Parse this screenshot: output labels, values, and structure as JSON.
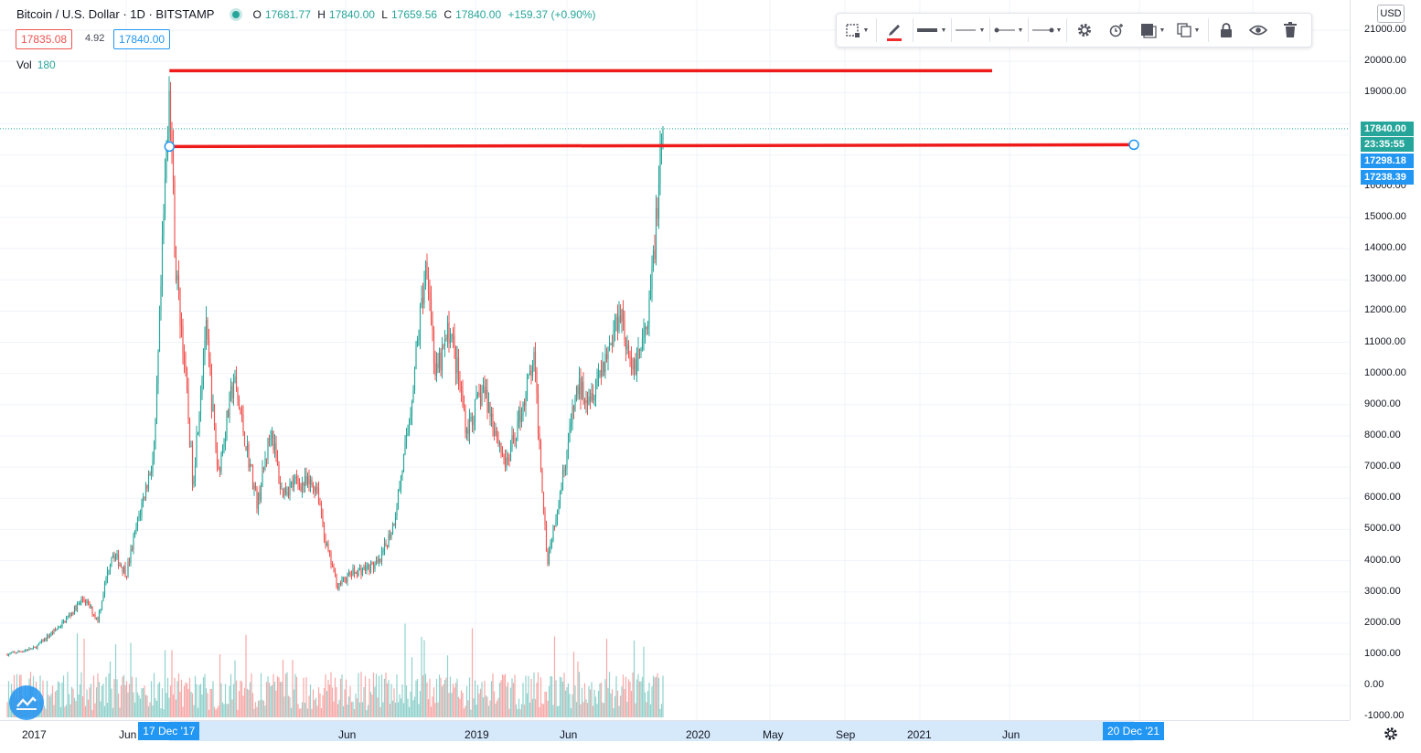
{
  "legend": {
    "title": "Bitcoin / U.S. Dollar · 1D · BITSTAMP",
    "open_label": "O",
    "open": "17681.77",
    "high_label": "H",
    "high": "17840.00",
    "low_label": "L",
    "low": "17659.56",
    "close_label": "C",
    "close": "17840.00",
    "change": "+159.37 (+0.90%)",
    "bid": "17835.08",
    "spread": "4.92",
    "ask": "17840.00",
    "vol_label": "Vol",
    "vol_value": "180"
  },
  "toolbar": {
    "items": [
      "select-area-icon",
      "pencil-icon",
      "line-width-icon",
      "line-style-icon",
      "line-left-end-icon",
      "line-right-end-icon",
      "settings-icon",
      "clone-alert-icon",
      "fill-icon",
      "copy-icon",
      "lock-icon",
      "eye-icon",
      "trash-icon"
    ],
    "accent_color": "#ef2b2b"
  },
  "price_axis": {
    "currency": "USD",
    "labels": [
      "21000.00",
      "20000.00",
      "19000.00",
      "17840.00",
      "16000.00",
      "15000.00",
      "14000.00",
      "13000.00",
      "12000.00",
      "11000.00",
      "10000.00",
      "9000.00",
      "8000.00",
      "7000.00",
      "6000.00",
      "5000.00",
      "4000.00",
      "3000.00",
      "2000.00",
      "1000.00",
      "0.00",
      "-1000.00"
    ],
    "tags": {
      "last_price": "17840.00",
      "countdown": "23:35:55",
      "line_a": "17298.18",
      "line_b": "17238.39"
    },
    "colors": {
      "last": "#26a69a",
      "countdown": "#26a69a",
      "line": "#2196f3"
    }
  },
  "time_axis": {
    "labels": [
      "2017",
      "Jun",
      "Jun",
      "2019",
      "Jun",
      "2020",
      "May",
      "Sep",
      "2021",
      "Jun"
    ],
    "start_tag": "17 Dec '17",
    "end_tag": "20 Dec '21"
  },
  "chart_data": {
    "type": "candlestick",
    "symbol": "Bitcoin / U.S. Dollar",
    "interval": "1D",
    "exchange": "BITSTAMP",
    "y_range": [
      -1000,
      21000
    ],
    "colors": {
      "up": "#26a69a",
      "down": "#ef5350"
    },
    "price_path": [
      [
        "2017-01-01",
        1000
      ],
      [
        "2017-03-01",
        1200
      ],
      [
        "2017-05-01",
        2000
      ],
      [
        "2017-06-15",
        2800
      ],
      [
        "2017-07-15",
        2100
      ],
      [
        "2017-08-15",
        4300
      ],
      [
        "2017-09-15",
        3600
      ],
      [
        "2017-10-15",
        5600
      ],
      [
        "2017-11-15",
        7500
      ],
      [
        "2017-12-17",
        19600
      ],
      [
        "2017-12-30",
        13500
      ],
      [
        "2018-01-15",
        11000
      ],
      [
        "2018-02-06",
        6500
      ],
      [
        "2018-03-05",
        11500
      ],
      [
        "2018-04-01",
        6800
      ],
      [
        "2018-05-05",
        9800
      ],
      [
        "2018-06-25",
        5800
      ],
      [
        "2018-07-25",
        8300
      ],
      [
        "2018-08-15",
        6200
      ],
      [
        "2018-09-15",
        6500
      ],
      [
        "2018-11-01",
        6400
      ],
      [
        "2018-11-20",
        4500
      ],
      [
        "2018-12-15",
        3200
      ],
      [
        "2019-01-15",
        3600
      ],
      [
        "2019-03-15",
        3900
      ],
      [
        "2019-04-15",
        5200
      ],
      [
        "2019-05-15",
        8000
      ],
      [
        "2019-06-26",
        13800
      ],
      [
        "2019-07-15",
        9800
      ],
      [
        "2019-08-15",
        11500
      ],
      [
        "2019-09-20",
        8200
      ],
      [
        "2019-10-26",
        9500
      ],
      [
        "2019-12-15",
        7000
      ],
      [
        "2020-02-12",
        10400
      ],
      [
        "2020-03-12",
        4000
      ],
      [
        "2020-04-15",
        6800
      ],
      [
        "2020-05-15",
        9500
      ],
      [
        "2020-06-15",
        9400
      ],
      [
        "2020-07-27",
        11000
      ],
      [
        "2020-08-17",
        12200
      ],
      [
        "2020-09-08",
        10000
      ],
      [
        "2020-10-15",
        11400
      ],
      [
        "2020-11-05",
        15500
      ],
      [
        "2020-11-18",
        17840
      ]
    ],
    "horizontal_lines": [
      {
        "price": 19700,
        "color": "#ef1b1b"
      },
      {
        "price": 17298.18,
        "color": "#ef1b1b"
      }
    ],
    "last_price": 17840
  }
}
